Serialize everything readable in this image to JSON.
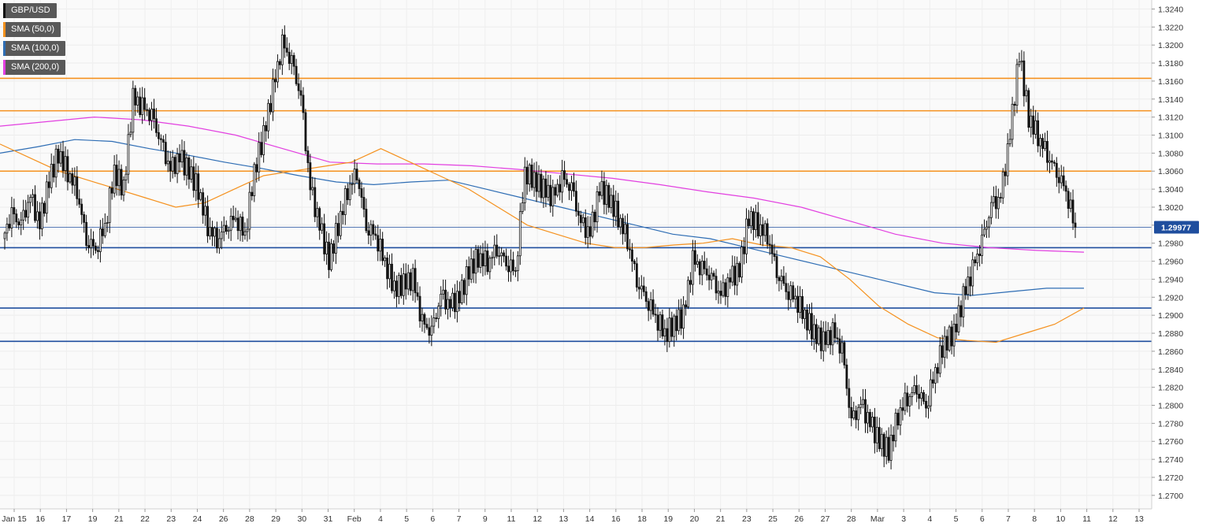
{
  "chart_data": {
    "type": "candlestick",
    "symbol": "GBP/USD",
    "legend": [
      {
        "label": "GBP/USD",
        "color": "#111111"
      },
      {
        "label": "SMA (50,0)",
        "color": "#f5911e"
      },
      {
        "label": "SMA (100,0)",
        "color": "#2e6db4"
      },
      {
        "label": "SMA (200,0)",
        "color": "#e23fe0"
      }
    ],
    "ylim": [
      1.2685,
      1.325
    ],
    "y_ticks": [
      "1.2700",
      "1.2720",
      "1.2740",
      "1.2760",
      "1.2780",
      "1.2800",
      "1.2820",
      "1.2840",
      "1.2860",
      "1.2880",
      "1.2900",
      "1.2920",
      "1.2940",
      "1.2960",
      "1.2980",
      "1.3000",
      "1.3020",
      "1.3040",
      "1.3060",
      "1.3080",
      "1.3100",
      "1.3120",
      "1.3140",
      "1.3160",
      "1.3180",
      "1.3200",
      "1.3220",
      "1.3240"
    ],
    "x_ticks": [
      "Jan 15",
      "16",
      "17",
      "19",
      "21",
      "22",
      "23",
      "24",
      "26",
      "28",
      "29",
      "30",
      "31",
      "Feb",
      "4",
      "5",
      "6",
      "7",
      "9",
      "11",
      "12",
      "13",
      "14",
      "16",
      "18",
      "19",
      "20",
      "21",
      "23",
      "25",
      "26",
      "27",
      "28",
      "Mar",
      "3",
      "4",
      "5",
      "6",
      "7",
      "8",
      "10",
      "11",
      "12",
      "13"
    ],
    "current_price": "1.29977",
    "current_price_value": 1.29977,
    "horizontal_levels": [
      {
        "value": 1.3163,
        "color": "#f5911e"
      },
      {
        "value": 1.3127,
        "color": "#f5911e"
      },
      {
        "value": 1.306,
        "color": "#f5911e"
      },
      {
        "value": 1.2975,
        "color": "#1f4e9e"
      },
      {
        "value": 1.2908,
        "color": "#1f4e9e"
      },
      {
        "value": 1.2871,
        "color": "#1f4e9e"
      }
    ],
    "price_path": [
      1.2985,
      1.301,
      1.3,
      1.303,
      1.3,
      1.305,
      1.308,
      1.306,
      1.304,
      1.2985,
      1.2975,
      1.3,
      1.306,
      1.304,
      1.314,
      1.313,
      1.312,
      1.309,
      1.306,
      1.3075,
      1.306,
      1.304,
      1.3,
      1.2985,
      1.3,
      1.301,
      1.299,
      1.306,
      1.31,
      1.315,
      1.32,
      1.318,
      1.314,
      1.304,
      1.3,
      1.296,
      1.3,
      1.304,
      1.306,
      1.3,
      1.299,
      1.296,
      1.293,
      1.2935,
      1.294,
      1.289,
      1.288,
      1.292,
      1.291,
      1.292,
      1.295,
      1.2965,
      1.296,
      1.2975,
      1.296,
      1.295,
      1.306,
      1.305,
      1.304,
      1.303,
      1.305,
      1.304,
      1.3,
      1.299,
      1.304,
      1.303,
      1.301,
      1.2985,
      1.294,
      1.292,
      1.29,
      1.288,
      1.289,
      1.29,
      1.296,
      1.295,
      1.294,
      1.292,
      1.294,
      1.295,
      1.301,
      1.3,
      1.299,
      1.295,
      1.293,
      1.292,
      1.29,
      1.288,
      1.287,
      1.288,
      1.286,
      1.278,
      1.28,
      1.278,
      1.276,
      1.275,
      1.279,
      1.281,
      1.282,
      1.28,
      1.284,
      1.287,
      1.288,
      1.292,
      1.295,
      1.298,
      1.302,
      1.303,
      1.31,
      1.319,
      1.312,
      1.31,
      1.308,
      1.306,
      1.304,
      1.2998
    ],
    "sma50": [
      1.309,
      1.3075,
      1.306,
      1.305,
      1.304,
      1.303,
      1.302,
      1.3025,
      1.304,
      1.3055,
      1.306,
      1.3065,
      1.307,
      1.3085,
      1.307,
      1.3055,
      1.304,
      1.302,
      1.3,
      1.299,
      1.298,
      1.2975,
      1.2975,
      1.2978,
      1.298,
      1.2985,
      1.2978,
      1.2975,
      1.2965,
      1.294,
      1.291,
      1.289,
      1.2875,
      1.2872,
      1.287,
      1.288,
      1.289,
      1.2908
    ],
    "sma100": [
      1.308,
      1.3087,
      1.3095,
      1.3093,
      1.3085,
      1.3078,
      1.307,
      1.3063,
      1.3055,
      1.3048,
      1.3045,
      1.3048,
      1.305,
      1.304,
      1.303,
      1.302,
      1.301,
      1.3,
      1.299,
      1.2985,
      1.2975,
      1.2965,
      1.2955,
      1.2945,
      1.2935,
      1.2925,
      1.2922,
      1.2926,
      1.293,
      1.293
    ],
    "sma200": [
      1.311,
      1.3115,
      1.312,
      1.3117,
      1.311,
      1.31,
      1.3085,
      1.307,
      1.3068,
      1.3068,
      1.3066,
      1.3062,
      1.3057,
      1.3052,
      1.3045,
      1.3037,
      1.303,
      1.302,
      1.3005,
      1.299,
      1.298,
      1.2975,
      1.2972,
      1.297
    ]
  }
}
